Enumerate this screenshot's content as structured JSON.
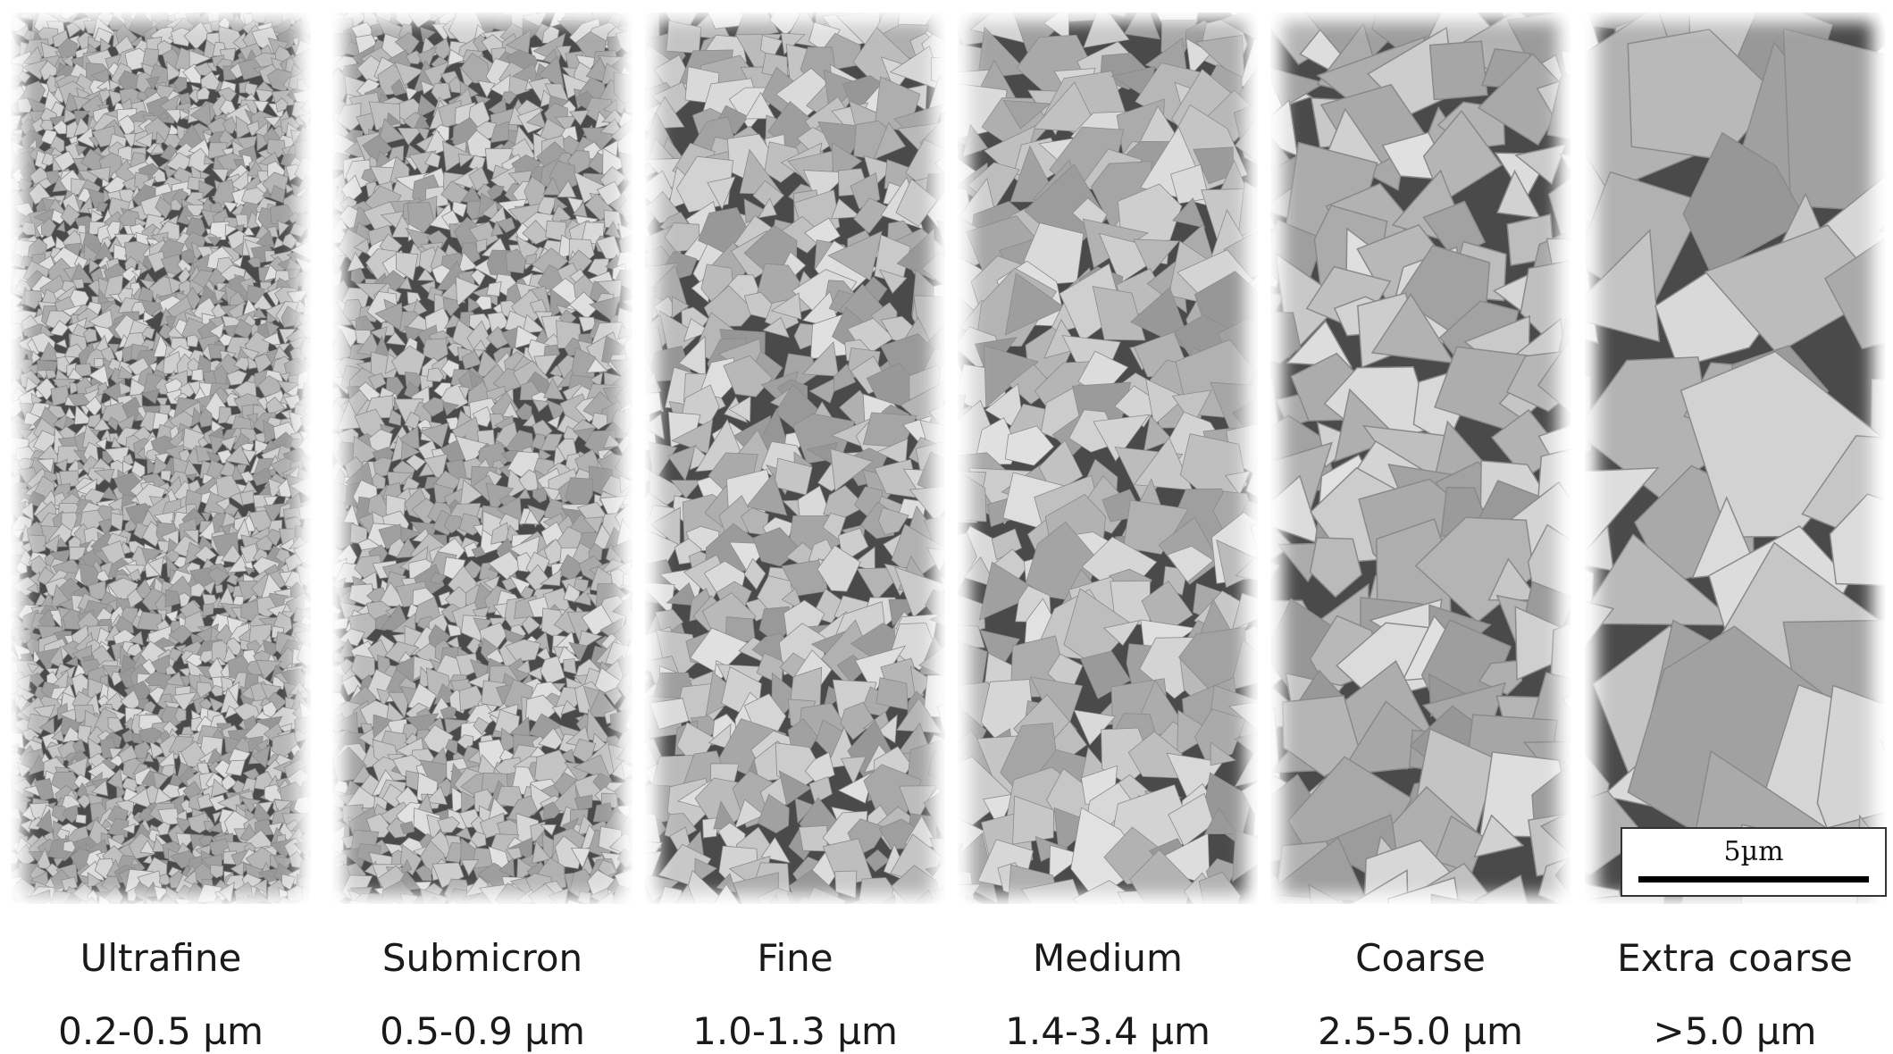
{
  "panels": [
    {
      "name": "Ultrafine",
      "size": "0.2-0.5 µm"
    },
    {
      "name": "Submicron",
      "size": "0.5-0.9 µm"
    },
    {
      "name": "Fine",
      "size": "1.0-1.3 µm"
    },
    {
      "name": "Medium",
      "size": "1.4-3.4 µm"
    },
    {
      "name": "Coarse",
      "size": "2.5-5.0 µm"
    },
    {
      "name": "Extra coarse",
      "size": ">5.0 µm"
    }
  ],
  "scale_bar": {
    "label": "5µm"
  },
  "colors": {
    "grain_light": "#d2d2d2",
    "grain_mid": "#a8a8a8",
    "binder_dark": "#4a4a4a",
    "background": "#ffffff"
  }
}
